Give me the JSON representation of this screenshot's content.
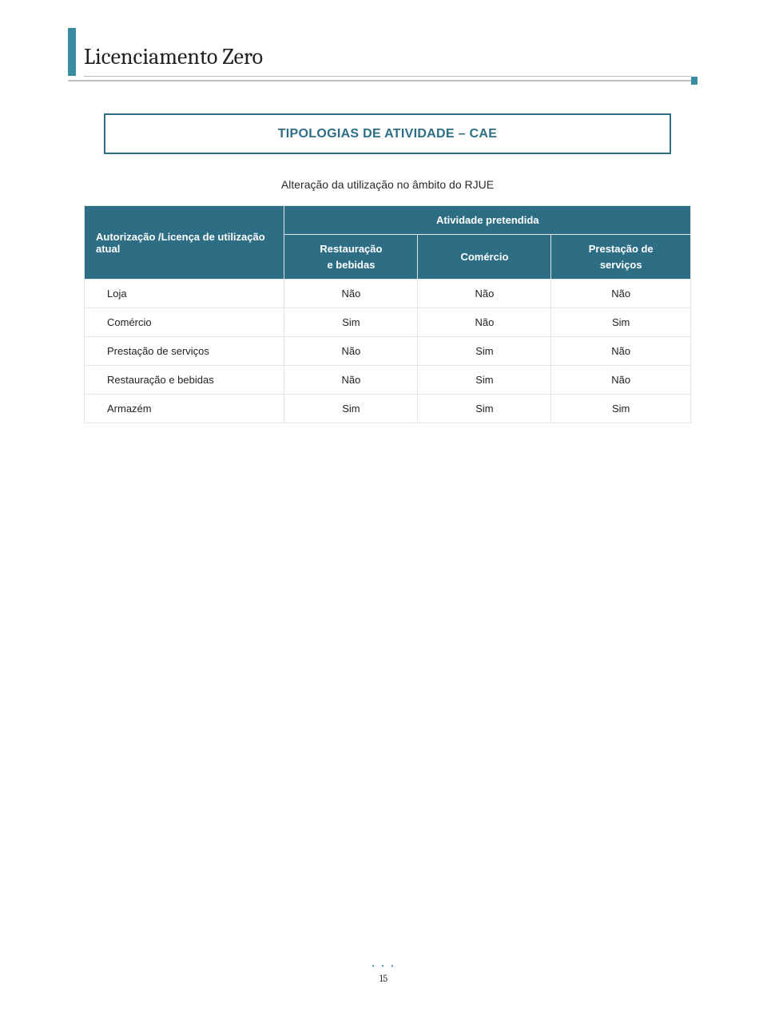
{
  "colors": {
    "teal_header": "#2d6e85",
    "teal_accent": "#3b8ba1",
    "rule_gray": "#bfbfbf",
    "cell_border": "#e4e4e4",
    "text": "#222222",
    "white": "#ffffff"
  },
  "doc_title": "Licenciamento Zero",
  "section_title": "TIPOLOGIAS DE ATIVIDADE – CAE",
  "subheading": "Alteração da utilização no âmbito do RJUE",
  "table": {
    "row_header_label": "Autorização /Licença  de utilização atual",
    "col_group_label": "Atividade pretendida",
    "columns": [
      "Restauração\ne bebidas",
      "Comércio",
      "Prestação de\nserviços"
    ],
    "rows": [
      {
        "label": "Loja",
        "values": [
          "Não",
          "Não",
          "Não"
        ]
      },
      {
        "label": "Comércio",
        "values": [
          "Sim",
          "Não",
          "Sim"
        ]
      },
      {
        "label": "Prestação de serviços",
        "values": [
          "Não",
          "Sim",
          "Não"
        ]
      },
      {
        "label": "Restauração e bebidas",
        "values": [
          "Não",
          "Sim",
          "Não"
        ]
      },
      {
        "label": "Armazém",
        "values": [
          "Sim",
          "Sim",
          "Sim"
        ]
      }
    ],
    "col_widths_pct": [
      33,
      22,
      22,
      23
    ],
    "header_fontsize": 13,
    "body_fontsize": 13
  },
  "page_number": "15",
  "footer_dots": "• • •"
}
